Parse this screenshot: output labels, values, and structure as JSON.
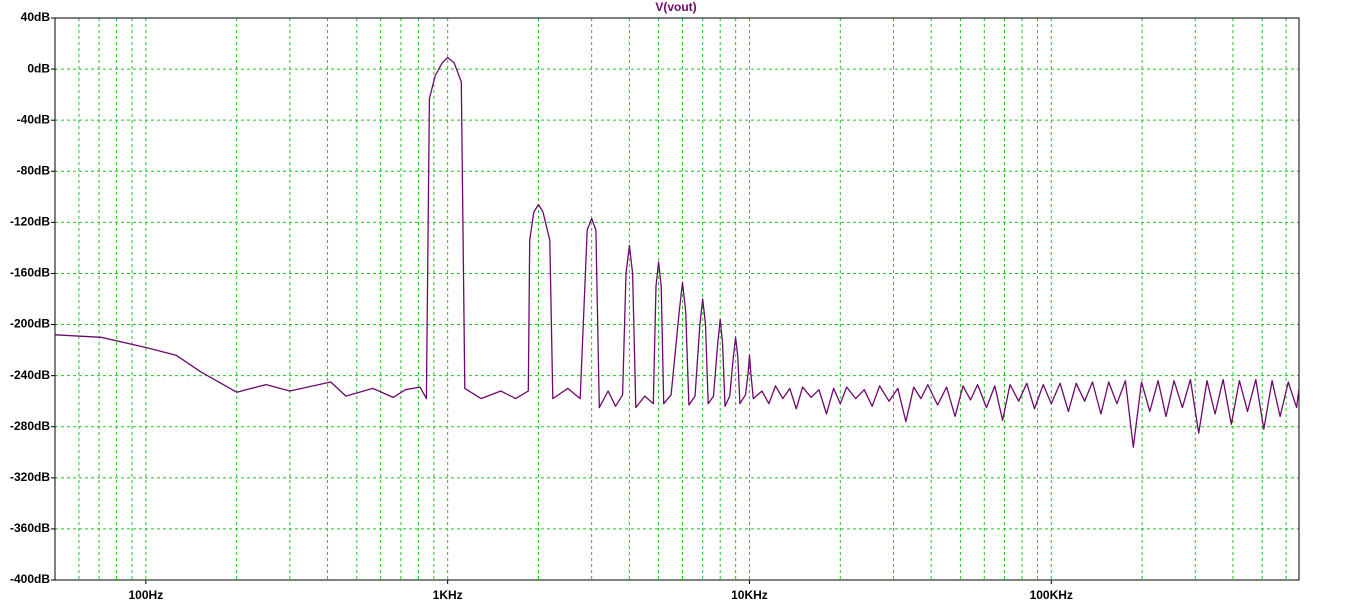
{
  "chart_data": {
    "type": "line",
    "title": "V(vout)",
    "xscale": "log",
    "grid": true,
    "xlim": [
      50,
      662000
    ],
    "ylim": [
      -400,
      40
    ],
    "xticks": [
      {
        "value": 100,
        "label": "100Hz"
      },
      {
        "value": 1000,
        "label": "1KHz"
      },
      {
        "value": 10000,
        "label": "10KHz"
      },
      {
        "value": 100000,
        "label": "100KHz"
      }
    ],
    "yticks": [
      {
        "value": 40,
        "label": "40dB"
      },
      {
        "value": 0,
        "label": "0dB"
      },
      {
        "value": -40,
        "label": "-40dB"
      },
      {
        "value": -80,
        "label": "-80dB"
      },
      {
        "value": -120,
        "label": "-120dB"
      },
      {
        "value": -160,
        "label": "-160dB"
      },
      {
        "value": -200,
        "label": "-200dB"
      },
      {
        "value": -240,
        "label": "-240dB"
      },
      {
        "value": -280,
        "label": "-280dB"
      },
      {
        "value": -320,
        "label": "-320dB"
      },
      {
        "value": -360,
        "label": "-360dB"
      },
      {
        "value": -400,
        "label": "-400dB"
      }
    ],
    "x": [
      50,
      71,
      100,
      126,
      152,
      200,
      250,
      300,
      410,
      460,
      565,
      660,
      725,
      810,
      850,
      870,
      910,
      960,
      1000,
      1050,
      1110,
      1140,
      1290,
      1500,
      1680,
      1850,
      1870,
      1930,
      2000,
      2070,
      2180,
      2230,
      2500,
      2750,
      2900,
      3000,
      3100,
      3180,
      3400,
      3600,
      3800,
      3900,
      4000,
      4100,
      4200,
      4500,
      4800,
      4900,
      5000,
      5100,
      5200,
      5500,
      5850,
      6000,
      6150,
      6300,
      6600,
      6850,
      7000,
      7150,
      7300,
      7600,
      7850,
      8000,
      8150,
      8300,
      8600,
      8850,
      9000,
      9150,
      9300,
      9700,
      9900,
      10000,
      10100,
      10300,
      11000,
      11600,
      12200,
      12900,
      13600,
      14300,
      15000,
      16000,
      17000,
      18000,
      19000,
      20000,
      21000,
      22500,
      24000,
      25500,
      27000,
      29000,
      31000,
      33000,
      35000,
      37000,
      39000,
      42000,
      45000,
      48000,
      51000,
      54000,
      57000,
      61000,
      65000,
      69000,
      73000,
      78000,
      83000,
      88000,
      94000,
      100000,
      107000,
      114000,
      121000,
      129000,
      137000,
      146000,
      155000,
      165000,
      176000,
      187000,
      199000,
      212000,
      226000,
      240000,
      255000,
      272000,
      289000,
      308000,
      328000,
      349000,
      371000,
      395000,
      420000,
      447000,
      476000,
      506000,
      539000,
      573000,
      610000,
      650000,
      662000
    ],
    "series": [
      {
        "name": "V(vout)",
        "color": "#6b0a6b",
        "values": [
          -208,
          -210,
          -218,
          -224,
          -237,
          -253,
          -247,
          -252,
          -245,
          -256,
          -250,
          -257,
          -251,
          -249,
          -258,
          -23,
          -5,
          5,
          9,
          5,
          -10,
          -250,
          -258,
          -252,
          -258,
          -252,
          -134,
          -112,
          -106,
          -112,
          -134,
          -258,
          -250,
          -258,
          -126,
          -117,
          -126,
          -265,
          -252,
          -264,
          -255,
          -160,
          -138,
          -160,
          -265,
          -256,
          -262,
          -170,
          -151,
          -170,
          -262,
          -255,
          -190,
          -167,
          -190,
          -263,
          -256,
          -200,
          -180,
          -200,
          -262,
          -256,
          -215,
          -196,
          -215,
          -264,
          -256,
          -225,
          -210,
          -225,
          -262,
          -255,
          -238,
          -224,
          -238,
          -258,
          -252,
          -262,
          -248,
          -258,
          -250,
          -266,
          -249,
          -257,
          -251,
          -270,
          -250,
          -262,
          -249,
          -258,
          -251,
          -264,
          -248,
          -260,
          -250,
          -276,
          -249,
          -258,
          -247,
          -263,
          -249,
          -272,
          -248,
          -259,
          -247,
          -265,
          -248,
          -275,
          -247,
          -260,
          -246,
          -266,
          -247,
          -262,
          -246,
          -268,
          -246,
          -260,
          -245,
          -270,
          -245,
          -262,
          -244,
          -296,
          -245,
          -268,
          -244,
          -272,
          -244,
          -265,
          -243,
          -285,
          -244,
          -270,
          -243,
          -278,
          -244,
          -268,
          -243,
          -282,
          -244,
          -272,
          -245,
          -265,
          -250
        ]
      }
    ]
  }
}
